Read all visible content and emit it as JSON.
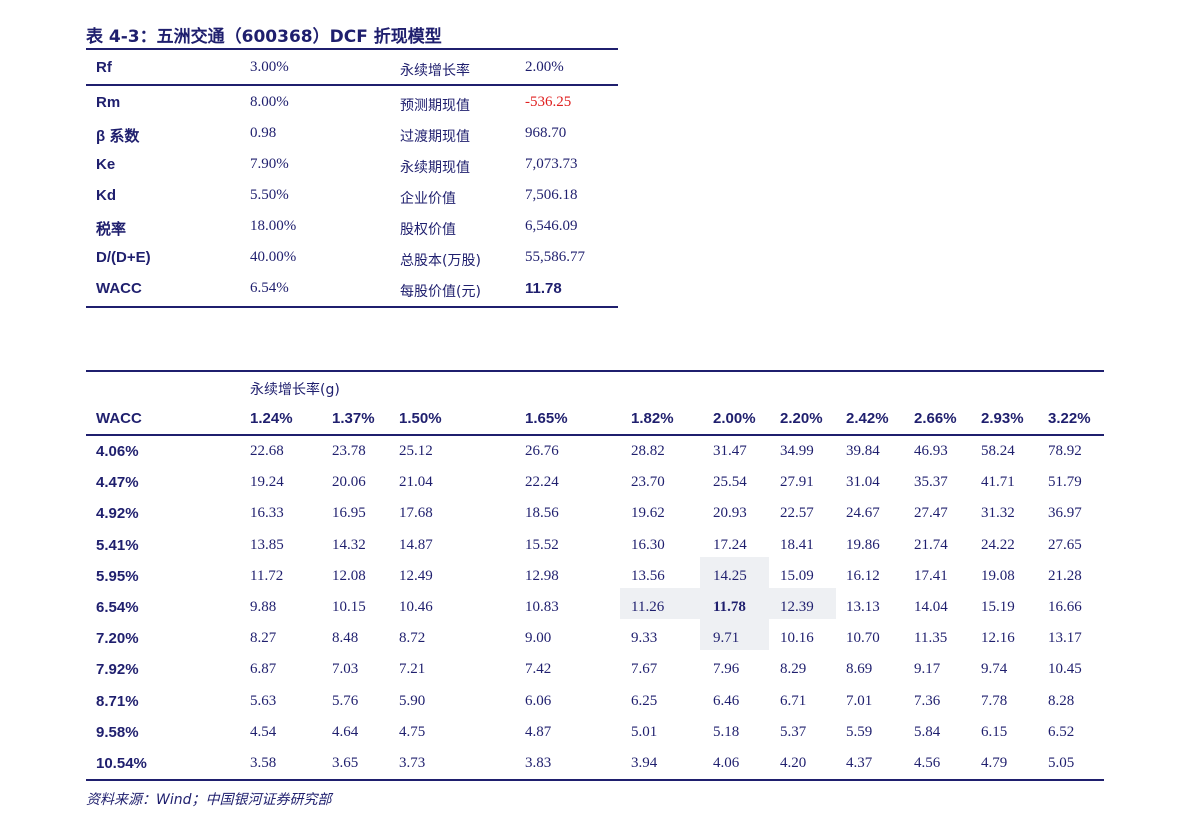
{
  "title": "表 4-3：五洲交通（600368）DCF 折现模型",
  "dcf_table": {
    "rows": [
      {
        "label1": "Rf",
        "value1": "3.00%",
        "label2": "永续增长率",
        "value2": "2.00%"
      },
      {
        "label1": "Rm",
        "value1": "8.00%",
        "label2": "预测期现值",
        "value2": "-536.25"
      },
      {
        "label1": "β 系数",
        "value1": "0.98",
        "label2": "过渡期现值",
        "value2": "968.70"
      },
      {
        "label1": "Ke",
        "value1": "7.90%",
        "label2": "永续期现值",
        "value2": "7,073.73"
      },
      {
        "label1": "Kd",
        "value1": "5.50%",
        "label2": "企业价值",
        "value2": "7,506.18"
      },
      {
        "label1": "税率",
        "value1": "18.00%",
        "label2": "股权价值",
        "value2": "6,546.09"
      },
      {
        "label1": "D/(D+E)",
        "value1": "40.00%",
        "label2": "总股本(万股)",
        "value2": "55,586.77"
      },
      {
        "label1": "WACC",
        "value1": "6.54%",
        "label2": "每股价值(元)",
        "value2": "11.78"
      }
    ],
    "negative_color": "#e02020"
  },
  "sensitivity_table": {
    "growth_header": "永续增长率(g)",
    "row_header": "WACC",
    "growth_rates": [
      "1.24%",
      "1.37%",
      "1.50%",
      "1.65%",
      "1.82%",
      "2.00%",
      "2.20%",
      "2.42%",
      "2.66%",
      "2.93%",
      "3.22%"
    ],
    "wacc_rates": [
      "4.06%",
      "4.47%",
      "4.92%",
      "5.41%",
      "5.95%",
      "6.54%",
      "7.20%",
      "7.92%",
      "8.71%",
      "9.58%",
      "10.54%"
    ],
    "values": [
      [
        "22.68",
        "23.78",
        "25.12",
        "26.76",
        "28.82",
        "31.47",
        "34.99",
        "39.84",
        "46.93",
        "58.24",
        "78.92"
      ],
      [
        "19.24",
        "20.06",
        "21.04",
        "22.24",
        "23.70",
        "25.54",
        "27.91",
        "31.04",
        "35.37",
        "41.71",
        "51.79"
      ],
      [
        "16.33",
        "16.95",
        "17.68",
        "18.56",
        "19.62",
        "20.93",
        "22.57",
        "24.67",
        "27.47",
        "31.32",
        "36.97"
      ],
      [
        "13.85",
        "14.32",
        "14.87",
        "15.52",
        "16.30",
        "17.24",
        "18.41",
        "19.86",
        "21.74",
        "24.22",
        "27.65"
      ],
      [
        "11.72",
        "12.08",
        "12.49",
        "12.98",
        "13.56",
        "14.25",
        "15.09",
        "16.12",
        "17.41",
        "19.08",
        "21.28"
      ],
      [
        "9.88",
        "10.15",
        "10.46",
        "10.83",
        "11.26",
        "11.78",
        "12.39",
        "13.13",
        "14.04",
        "15.19",
        "16.66"
      ],
      [
        "8.27",
        "8.48",
        "8.72",
        "9.00",
        "9.33",
        "9.71",
        "10.16",
        "10.70",
        "11.35",
        "12.16",
        "13.17"
      ],
      [
        "6.87",
        "7.03",
        "7.21",
        "7.42",
        "7.67",
        "7.96",
        "8.29",
        "8.69",
        "9.17",
        "9.74",
        "10.45"
      ],
      [
        "5.63",
        "5.76",
        "5.90",
        "6.06",
        "6.25",
        "6.46",
        "6.71",
        "7.01",
        "7.36",
        "7.78",
        "8.28"
      ],
      [
        "4.54",
        "4.64",
        "4.75",
        "4.87",
        "5.01",
        "5.18",
        "5.37",
        "5.59",
        "5.84",
        "6.15",
        "6.52"
      ],
      [
        "3.58",
        "3.65",
        "3.73",
        "3.83",
        "3.94",
        "4.06",
        "4.20",
        "4.37",
        "4.56",
        "4.79",
        "5.05"
      ]
    ],
    "highlight_color": "#eef0f3",
    "text_color": "#1f1f6e"
  },
  "source": "资料来源：Wind；中国银河证券研究部"
}
